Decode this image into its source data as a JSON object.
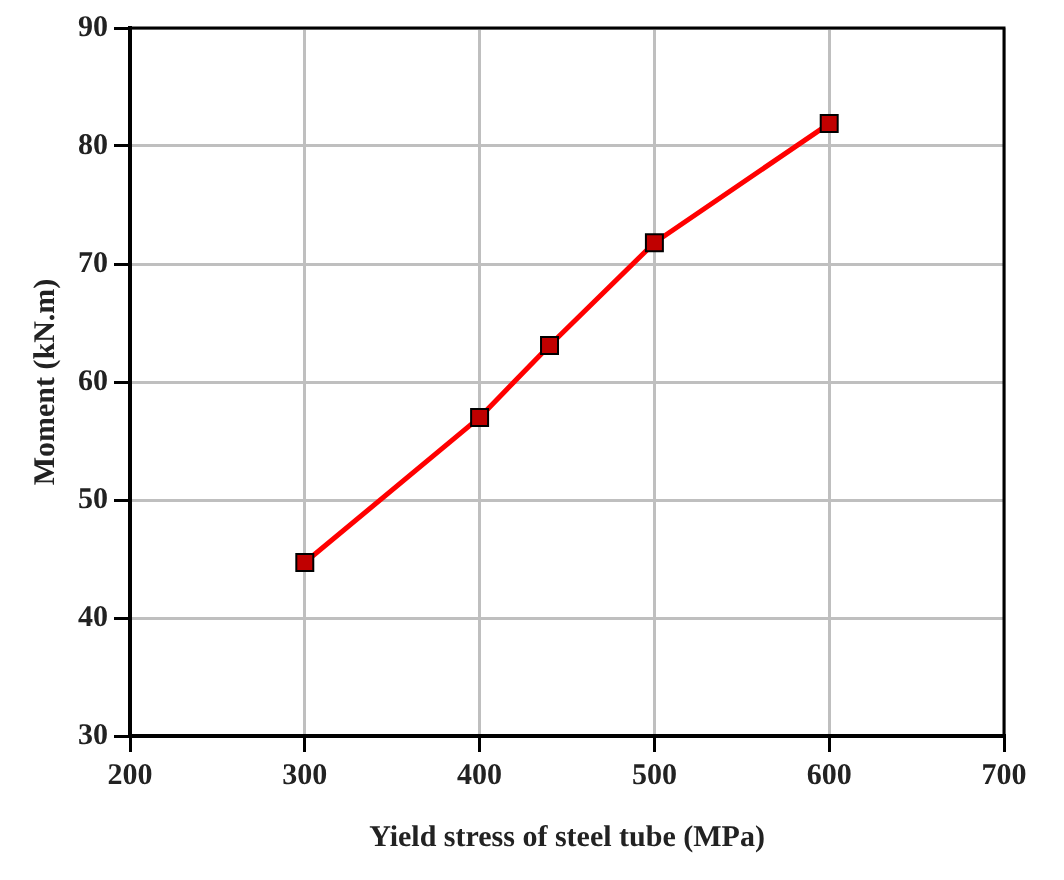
{
  "chart_data": {
    "type": "line",
    "xlabel": "Yield stress of steel tube (MPa)",
    "ylabel": "Moment (kN.m)",
    "x": [
      300,
      400,
      440,
      500,
      600
    ],
    "series": [
      {
        "color": "#ff0000",
        "values": [
          44.7,
          57,
          63.1,
          71.8,
          81.9
        ]
      }
    ],
    "xlim": [
      200,
      700
    ],
    "xticks": [
      200,
      300,
      400,
      500,
      600,
      700
    ],
    "ylim": [
      30,
      90
    ],
    "yticks": [
      30,
      40,
      50,
      60,
      70,
      80,
      90
    ],
    "grid": true,
    "marker": "square",
    "line_style": "solid"
  }
}
